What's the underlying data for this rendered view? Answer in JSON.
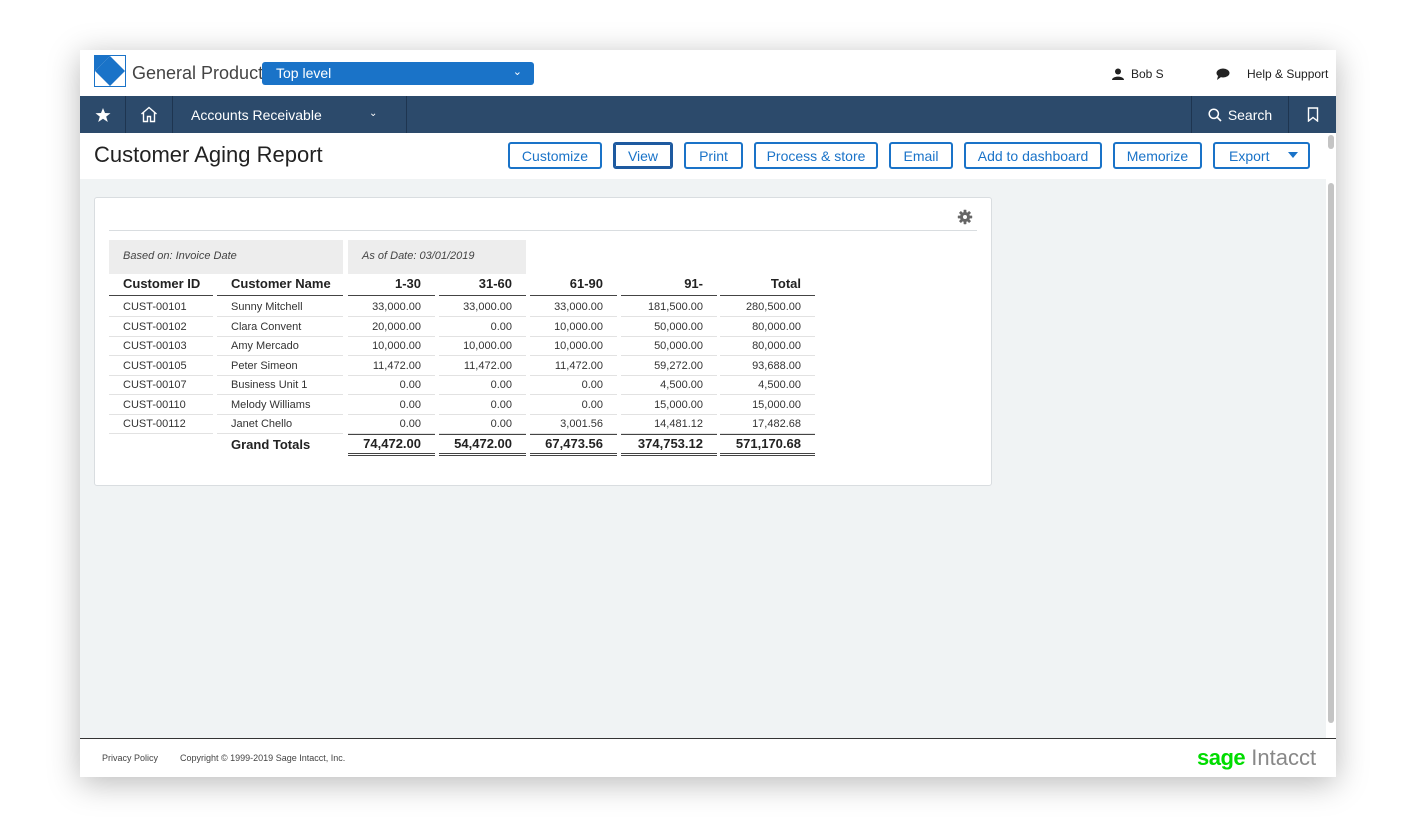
{
  "topbar": {
    "company": "General Product",
    "entity": "Top level",
    "user": "Bob S",
    "help": "Help & Support"
  },
  "nav": {
    "module": "Accounts Receivable",
    "search": "Search",
    "icons": [
      "star-icon",
      "home-icon",
      "chevron-down-icon",
      "search-icon",
      "bookmark-icon"
    ]
  },
  "page": {
    "title": "Customer Aging Report",
    "buttons": {
      "customize": "Customize",
      "view": "View",
      "print": "Print",
      "process": "Process & store",
      "email": "Email",
      "dashboard": "Add to dashboard",
      "memorize": "Memorize",
      "export": "Export"
    }
  },
  "report": {
    "based_on": "Based on: Invoice Date",
    "as_of": "As of Date: 03/01/2019",
    "columns": [
      "Customer ID",
      "Customer Name",
      "1-30",
      "31-60",
      "61-90",
      "91-",
      "Total"
    ],
    "rows": [
      [
        "CUST-00101",
        "Sunny Mitchell",
        "33,000.00",
        "33,000.00",
        "33,000.00",
        "181,500.00",
        "280,500.00"
      ],
      [
        "CUST-00102",
        "Clara Convent",
        "20,000.00",
        "0.00",
        "10,000.00",
        "50,000.00",
        "80,000.00"
      ],
      [
        "CUST-00103",
        "Amy Mercado",
        "10,000.00",
        "10,000.00",
        "10,000.00",
        "50,000.00",
        "80,000.00"
      ],
      [
        "CUST-00105",
        "Peter Simeon",
        "11,472.00",
        "11,472.00",
        "11,472.00",
        "59,272.00",
        "93,688.00"
      ],
      [
        "CUST-00107",
        "Business Unit 1",
        "0.00",
        "0.00",
        "0.00",
        "4,500.00",
        "4,500.00"
      ],
      [
        "CUST-00110",
        "Melody Williams",
        "0.00",
        "0.00",
        "0.00",
        "15,000.00",
        "15,000.00"
      ],
      [
        "CUST-00112",
        "Janet Chello",
        "0.00",
        "0.00",
        "3,001.56",
        "14,481.12",
        "17,482.68"
      ]
    ],
    "totals_label": "Grand Totals",
    "totals": [
      "74,472.00",
      "54,472.00",
      "67,473.56",
      "374,753.12",
      "571,170.68"
    ]
  },
  "footer": {
    "privacy": "Privacy Policy",
    "copyright": "Copyright © 1999-2019 Sage Intacct, Inc.",
    "brand_sage": "sage",
    "brand_intacct": "Intacct"
  },
  "colors": {
    "accent": "#1a73c8",
    "navbar": "#2c4a6b",
    "brand_green": "#00dc00"
  }
}
